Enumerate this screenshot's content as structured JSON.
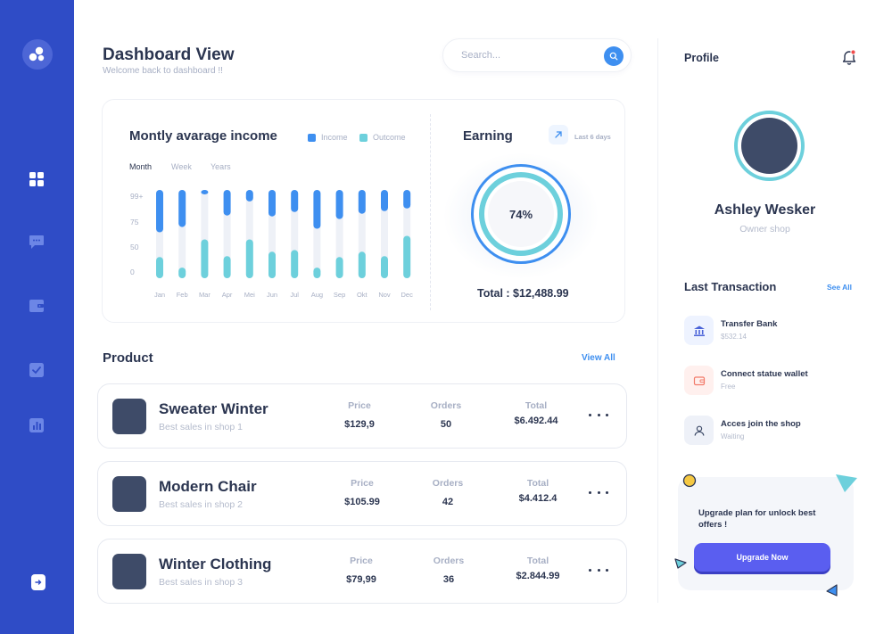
{
  "header": {
    "title": "Dashboard View",
    "subtitle": "Welcome back to dashboard !!",
    "search_placeholder": "Search..."
  },
  "sidebar": {
    "items": [
      {
        "icon": "grid-icon"
      },
      {
        "icon": "chat-icon"
      },
      {
        "icon": "wallet-icon"
      },
      {
        "icon": "checkbox-icon"
      },
      {
        "icon": "bar-chart-icon"
      }
    ],
    "logout_icon": "logout-icon"
  },
  "income": {
    "title": "Montly avarage income",
    "legend_income": "Income",
    "legend_outcome": "Outcome",
    "periods": [
      "Month",
      "Week",
      "Years"
    ],
    "active_period": "Month"
  },
  "chart_data": {
    "type": "bar",
    "categories": [
      "Jan",
      "Feb",
      "Mar",
      "Apr",
      "Mei",
      "Jun",
      "Jul",
      "Aug",
      "Sep",
      "Okt",
      "Nov",
      "Dec"
    ],
    "y_tick_labels": [
      "99+",
      "75",
      "50",
      "0"
    ],
    "series": [
      {
        "name": "Income",
        "values": [
          [
            52,
            100
          ],
          [
            58,
            100
          ],
          [
            95,
            100
          ],
          [
            71,
            100
          ],
          [
            87,
            100
          ],
          [
            70,
            100
          ],
          [
            75,
            100
          ],
          [
            56,
            100
          ],
          [
            67,
            100
          ],
          [
            73,
            100
          ],
          [
            76,
            100
          ],
          [
            79,
            100
          ]
        ]
      },
      {
        "name": "Outcome",
        "values": [
          [
            0,
            24
          ],
          [
            0,
            12
          ],
          [
            0,
            44
          ],
          [
            0,
            25
          ],
          [
            0,
            44
          ],
          [
            0,
            30
          ],
          [
            0,
            32
          ],
          [
            0,
            12
          ],
          [
            0,
            24
          ],
          [
            0,
            30
          ],
          [
            0,
            25
          ],
          [
            0,
            48
          ]
        ]
      }
    ],
    "ylim": [
      0,
      100
    ],
    "colors": {
      "Income": "#3e8ff0",
      "Outcome": "#6dd0dc",
      "track": "#eef1f7"
    }
  },
  "earning": {
    "title": "Earning",
    "period": "Last 6 days",
    "percent": "74%",
    "total": "Total : $12,488.99"
  },
  "products": {
    "title": "Product",
    "view_all": "View All",
    "columns": {
      "price": "Price",
      "orders": "Orders",
      "total": "Total"
    },
    "items": [
      {
        "name": "Sweater Winter",
        "sub": "Best sales in shop 1",
        "price": "$129,9",
        "orders": "50",
        "total": "$6.492.44"
      },
      {
        "name": "Modern Chair",
        "sub": "Best sales in shop 2",
        "price": "$105.99",
        "orders": "42",
        "total": "$4.412.4"
      },
      {
        "name": "Winter Clothing",
        "sub": "Best sales in shop 3",
        "price": "$79,99",
        "orders": "36",
        "total": "$2.844.99"
      }
    ]
  },
  "profile": {
    "title": "Profile",
    "name": "Ashley Wesker",
    "role": "Owner shop"
  },
  "transactions": {
    "title": "Last Transaction",
    "see_all": "See All",
    "items": [
      {
        "title": "Transfer Bank",
        "sub": "$532.14",
        "icon": "bank-icon",
        "bg": "#eef3ff",
        "fg": "#4a63d8"
      },
      {
        "title": "Connect statue wallet",
        "sub": "Free",
        "icon": "wallet-icon",
        "bg": "#fff0ee",
        "fg": "#f27b6b"
      },
      {
        "title": "Acces join the shop",
        "sub": "Waiting",
        "icon": "user-icon",
        "bg": "#eef1f8",
        "fg": "#3e4b68"
      }
    ]
  },
  "upgrade": {
    "text": "Upgrade plan for unlock best offers !",
    "button": "Upgrade Now"
  }
}
